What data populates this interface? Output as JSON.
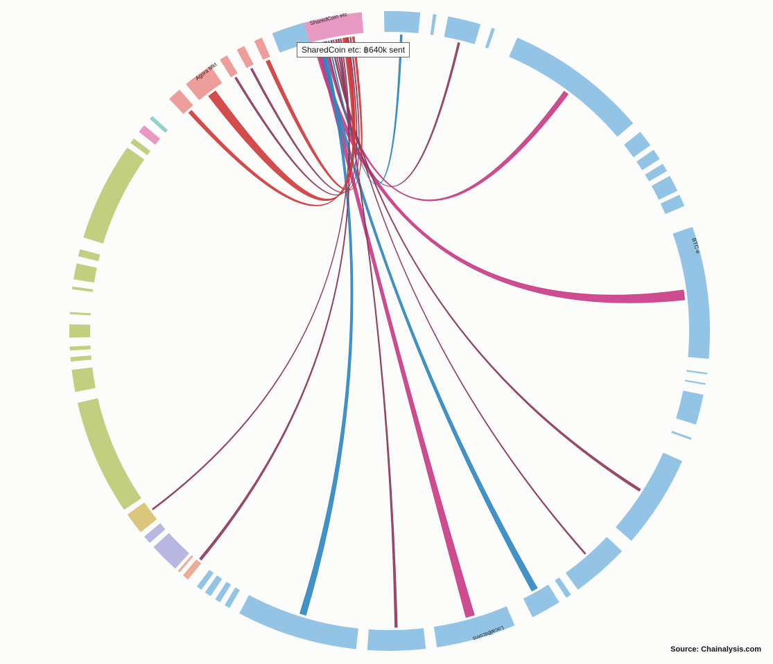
{
  "tooltip": {
    "text": "SharedCoin etc: ฿640k sent"
  },
  "source": {
    "text": "Source: Chainalysis.com"
  },
  "colors": {
    "exchange": "#93c4e6",
    "market": "#ee9e9a",
    "mixer": "#e89ac2",
    "pool": "#c2cf80",
    "gold": "#dcc67e",
    "purple": "#b7b7e2",
    "orange": "#ecac97",
    "teal": "#8fd2d2",
    "ribbon_pink": "#c83a84",
    "ribbon_red": "#cf3a3a",
    "ribbon_blue": "#2e86c1",
    "ribbon_dark": "#8e3a5e"
  },
  "chart_data": {
    "type": "chord",
    "title": "",
    "groups": [
      {
        "name": "SharedCoin etc",
        "start_deg": -16.5,
        "end_deg": -5.0,
        "color": "mixer",
        "labeled": true
      },
      {
        "name": "",
        "start_deg": -1.0,
        "end_deg": 5.5,
        "color": "exchange"
      },
      {
        "name": "",
        "start_deg": 7.8,
        "end_deg": 8.4,
        "color": "exchange"
      },
      {
        "name": "",
        "start_deg": 10.5,
        "end_deg": 16.5,
        "color": "exchange"
      },
      {
        "name": "",
        "start_deg": 18.6,
        "end_deg": 19.2,
        "color": "exchange"
      },
      {
        "name": "",
        "start_deg": 23.5,
        "end_deg": 49.5,
        "color": "exchange"
      },
      {
        "name": "",
        "start_deg": 51.5,
        "end_deg": 54.5,
        "color": "exchange"
      },
      {
        "name": "",
        "start_deg": 55.5,
        "end_deg": 57.5,
        "color": "exchange"
      },
      {
        "name": "",
        "start_deg": 58.5,
        "end_deg": 60.0,
        "color": "exchange"
      },
      {
        "name": "",
        "start_deg": 61.0,
        "end_deg": 64.0,
        "color": "exchange"
      },
      {
        "name": "",
        "start_deg": 64.8,
        "end_deg": 67.0,
        "color": "exchange"
      },
      {
        "name": "BTC-e",
        "start_deg": 71.0,
        "end_deg": 95.0,
        "color": "exchange",
        "labeled": true
      },
      {
        "name": "",
        "start_deg": 97.5,
        "end_deg": 97.8,
        "color": "exchange"
      },
      {
        "name": "",
        "start_deg": 99.4,
        "end_deg": 99.7,
        "color": "exchange"
      },
      {
        "name": "",
        "start_deg": 101.5,
        "end_deg": 107.0,
        "color": "exchange"
      },
      {
        "name": "",
        "start_deg": 109.5,
        "end_deg": 109.9,
        "color": "exchange"
      },
      {
        "name": "",
        "start_deg": 114.0,
        "end_deg": 131.0,
        "color": "exchange"
      },
      {
        "name": "",
        "start_deg": 133.5,
        "end_deg": 144.0,
        "color": "exchange"
      },
      {
        "name": "",
        "start_deg": 145.5,
        "end_deg": 146.5,
        "color": "exchange"
      },
      {
        "name": "",
        "start_deg": 148.0,
        "end_deg": 153.5,
        "color": "exchange"
      },
      {
        "name": "LocalBitcoins",
        "start_deg": 157.0,
        "end_deg": 171.5,
        "color": "exchange",
        "labeled": true
      },
      {
        "name": "",
        "start_deg": 173.5,
        "end_deg": 184.0,
        "color": "exchange"
      },
      {
        "name": "",
        "start_deg": 186.0,
        "end_deg": 208.0,
        "color": "exchange"
      },
      {
        "name": "",
        "start_deg": 210.0,
        "end_deg": 211.0,
        "color": "exchange"
      },
      {
        "name": "",
        "start_deg": 212.0,
        "end_deg": 213.0,
        "color": "exchange"
      },
      {
        "name": "",
        "start_deg": 214.0,
        "end_deg": 215.2,
        "color": "exchange"
      },
      {
        "name": "",
        "start_deg": 216.0,
        "end_deg": 217.0,
        "color": "exchange"
      },
      {
        "name": "",
        "start_deg": 219.0,
        "end_deg": 220.2,
        "color": "orange"
      },
      {
        "name": "",
        "start_deg": 221.0,
        "end_deg": 221.4,
        "color": "orange"
      },
      {
        "name": "",
        "start_deg": 222.0,
        "end_deg": 227.5,
        "color": "purple"
      },
      {
        "name": "",
        "start_deg": 228.5,
        "end_deg": 230.0,
        "color": "purple"
      },
      {
        "name": "",
        "start_deg": 231.0,
        "end_deg": 235.0,
        "color": "gold"
      },
      {
        "name": "",
        "start_deg": 236.0,
        "end_deg": 257.0,
        "color": "pool"
      },
      {
        "name": "",
        "start_deg": 259.0,
        "end_deg": 263.0,
        "color": "pool"
      },
      {
        "name": "",
        "start_deg": 264.5,
        "end_deg": 265.3,
        "color": "pool"
      },
      {
        "name": "",
        "start_deg": 266.5,
        "end_deg": 267.2,
        "color": "pool"
      },
      {
        "name": "",
        "start_deg": 268.8,
        "end_deg": 271.2,
        "color": "pool"
      },
      {
        "name": "",
        "start_deg": 273.0,
        "end_deg": 273.4,
        "color": "pool"
      },
      {
        "name": "",
        "start_deg": 277.5,
        "end_deg": 278.0,
        "color": "pool"
      },
      {
        "name": "",
        "start_deg": 279.3,
        "end_deg": 282.2,
        "color": "pool"
      },
      {
        "name": "",
        "start_deg": 283.5,
        "end_deg": 284.8,
        "color": "pool"
      },
      {
        "name": "",
        "start_deg": 287.0,
        "end_deg": 305.0,
        "color": "pool"
      },
      {
        "name": "",
        "start_deg": 306.0,
        "end_deg": 307.0,
        "color": "pool"
      },
      {
        "name": "",
        "start_deg": 308.5,
        "end_deg": 310.0,
        "color": "mixer"
      },
      {
        "name": "",
        "start_deg": 311.5,
        "end_deg": 312.2,
        "color": "teal"
      },
      {
        "name": "",
        "start_deg": 316.5,
        "end_deg": 319.0,
        "color": "market"
      },
      {
        "name": "Agora Mkt",
        "start_deg": 320.5,
        "end_deg": 326.0,
        "color": "market",
        "labeled": true
      },
      {
        "name": "",
        "start_deg": 328.0,
        "end_deg": 329.5,
        "color": "market"
      },
      {
        "name": "",
        "start_deg": 331.5,
        "end_deg": 333.0,
        "color": "market"
      },
      {
        "name": "",
        "start_deg": 335.0,
        "end_deg": 336.5,
        "color": "market"
      },
      {
        "name": "",
        "start_deg": 338.5,
        "end_deg": 344.5,
        "color": "exchange"
      }
    ],
    "chords": [
      {
        "from": 0,
        "to": 11,
        "width": 8,
        "color": "ribbon_pink"
      },
      {
        "from": 0,
        "to": 20,
        "width": 7,
        "color": "ribbon_pink"
      },
      {
        "from": 0,
        "to": 19,
        "width": 5,
        "color": "ribbon_blue"
      },
      {
        "from": 0,
        "to": 22,
        "width": 5,
        "color": "ribbon_blue"
      },
      {
        "from": 0,
        "to": 5,
        "width": 4,
        "color": "ribbon_pink"
      },
      {
        "from": 0,
        "to": 3,
        "width": 1.5,
        "color": "ribbon_dark"
      },
      {
        "from": 0,
        "to": 1,
        "width": 1.5,
        "color": "ribbon_blue"
      },
      {
        "from": 0,
        "to": 16,
        "width": 2,
        "color": "ribbon_dark"
      },
      {
        "from": 0,
        "to": 17,
        "width": 1,
        "color": "ribbon_dark"
      },
      {
        "from": 0,
        "to": 21,
        "width": 2,
        "color": "ribbon_dark"
      },
      {
        "from": 0,
        "to": 27,
        "width": 2,
        "color": "ribbon_dark"
      },
      {
        "from": 0,
        "to": 31,
        "width": 1,
        "color": "ribbon_dark"
      },
      {
        "from": 0,
        "to": 46,
        "width": 7,
        "color": "ribbon_red"
      },
      {
        "from": 0,
        "to": 45,
        "width": 3,
        "color": "ribbon_red"
      },
      {
        "from": 0,
        "to": 47,
        "width": 1.5,
        "color": "ribbon_dark"
      },
      {
        "from": 0,
        "to": 48,
        "width": 1.5,
        "color": "ribbon_dark"
      },
      {
        "from": 0,
        "to": 49,
        "width": 3,
        "color": "ribbon_red"
      }
    ]
  }
}
